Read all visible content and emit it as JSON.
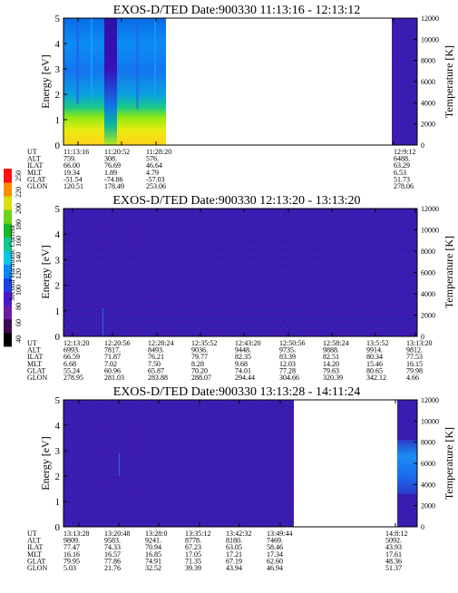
{
  "colorbar": {
    "label": "Second Harmonic Current",
    "ticks": [
      "40",
      "60",
      "80",
      "100",
      "120",
      "140",
      "160",
      "180",
      "200",
      "220",
      "250"
    ]
  },
  "chart_data": [
    {
      "type": "heatmap",
      "title": "EXOS-D/TED   Date:900330   11:13:16 - 12:13:12",
      "ylabel": "Energy [eV]",
      "y2label": "Temperature [K]",
      "ylim": [
        0,
        5
      ],
      "y2lim": [
        0,
        12000
      ],
      "yticks": [
        "0",
        "1",
        "2",
        "3",
        "4",
        "5"
      ],
      "y2ticks": [
        "0",
        "2000",
        "4000",
        "6000",
        "8000",
        "10000",
        "12000"
      ],
      "time_labels": [
        "11:13:16",
        "11:20:52",
        "11:28:20",
        "12:9:12"
      ],
      "rows": [
        {
          "label": "UT",
          "values": [
            "11:13:16",
            "11:20:52",
            "11:28:20",
            "12:9:12"
          ]
        },
        {
          "label": "ALT",
          "values": [
            "759.",
            "308.",
            "576.",
            "6488."
          ]
        },
        {
          "label": "ILAT",
          "values": [
            "66.00",
            "76.69",
            "46.64",
            "63.29"
          ]
        },
        {
          "label": "MLT",
          "values": [
            "19.34",
            "1.89",
            "4.79",
            "6.53"
          ]
        },
        {
          "label": "GLAT",
          "values": [
            "-51.54",
            "-74.86",
            "-57.03",
            "51.73"
          ]
        },
        {
          "label": "GLON",
          "values": [
            "120.51",
            "178.49",
            "253.06",
            "278.06"
          ]
        }
      ],
      "data_segments": [
        "11:13:16 - 11:28:20 (high values, energy below ~1.5 eV)",
        "12:9:12 - 12:13:12 (background)"
      ]
    },
    {
      "type": "heatmap",
      "title": "EXOS-D/TED   Date:900330   12:13:20 - 13:13:20",
      "ylabel": "Energy [eV]",
      "y2label": "Temperature [K]",
      "ylim": [
        0,
        5
      ],
      "y2lim": [
        0,
        12000
      ],
      "yticks": [
        "0",
        "1",
        "2",
        "3",
        "4",
        "5"
      ],
      "y2ticks": [
        "0",
        "2000",
        "4000",
        "6000",
        "8000",
        "10000",
        "12000"
      ],
      "time_labels": [
        "12:13:20",
        "12:20:56",
        "12:28:24",
        "12:35:52",
        "12:43:20",
        "12:50:56",
        "12:58:24",
        "13:5:52",
        "13:13:20"
      ],
      "rows": [
        {
          "label": "UT",
          "values": [
            "12:13:20",
            "12:20:56",
            "12:28:24",
            "12:35:52",
            "12:43:20",
            "12:50:56",
            "12:58:24",
            "13:5:52",
            "13:13:20"
          ]
        },
        {
          "label": "ALT",
          "values": [
            "6993.",
            "7817.",
            "8493.",
            "9036.",
            "9448.",
            "9735.",
            "9888.",
            "9914.",
            "9812."
          ]
        },
        {
          "label": "ILAT",
          "values": [
            "66.59",
            "71.87",
            "76.21",
            "79.77",
            "82.35",
            "83.39",
            "82.51",
            "80.34",
            "77.53"
          ]
        },
        {
          "label": "MLT",
          "values": [
            "6.68",
            "7.02",
            "7.50",
            "8.28",
            "9.68",
            "12.03",
            "14.20",
            "15.46",
            "16.15"
          ]
        },
        {
          "label": "GLAT",
          "values": [
            "55.24",
            "60.96",
            "65.87",
            "70.20",
            "74.01",
            "77.28",
            "79.63",
            "80.65",
            "79.98"
          ]
        },
        {
          "label": "GLON",
          "values": [
            "278.95",
            "281.03",
            "283.88",
            "288.07",
            "294.44",
            "304.66",
            "320.39",
            "342.12",
            "4.66"
          ]
        }
      ],
      "data_segments": [
        "12:13:20 - 13:13:20 (background)"
      ]
    },
    {
      "type": "heatmap",
      "title": "EXOS-D/TED   Date:900330   13:13:28 - 14:11:24",
      "ylabel": "Energy [eV]",
      "y2label": "Temperature [K]",
      "ylim": [
        0,
        5
      ],
      "y2lim": [
        0,
        12000
      ],
      "yticks": [
        "0",
        "1",
        "2",
        "3",
        "4",
        "5"
      ],
      "y2ticks": [
        "0",
        "2000",
        "4000",
        "6000",
        "8000",
        "10000",
        "12000"
      ],
      "time_labels": [
        "13:13:28",
        "13:20:48",
        "13:28:0",
        "13:35:12",
        "13:42:32",
        "13:49:44",
        "14:8:12"
      ],
      "rows": [
        {
          "label": "UT",
          "values": [
            "13:13:28",
            "13:20:48",
            "13:28:0",
            "13:35:12",
            "13:42:32",
            "13:49:44",
            "14:8:12"
          ]
        },
        {
          "label": "ALT",
          "values": [
            "9809.",
            "9583.",
            "9241.",
            "8778.",
            "8180.",
            "7469.",
            "5092."
          ]
        },
        {
          "label": "ILAT",
          "values": [
            "77.47",
            "74.33",
            "70.94",
            "67.23",
            "63.05",
            "58.46",
            "43.93"
          ]
        },
        {
          "label": "MLT",
          "values": [
            "16.16",
            "16.57",
            "16.85",
            "17.05",
            "17.21",
            "17.34",
            "17.61"
          ]
        },
        {
          "label": "GLAT",
          "values": [
            "79.95",
            "77.86",
            "74.91",
            "71.35",
            "67.19",
            "62.60",
            "48.36"
          ]
        },
        {
          "label": "GLON",
          "values": [
            "5.03",
            "21.76",
            "32.52",
            "39.39",
            "43.94",
            "46.94",
            "51.37"
          ]
        }
      ],
      "data_segments": [
        "13:13:28 - 13:52:00 (background)",
        "14:8:12 - 14:11:24 (elevated near 2-3.5 eV)"
      ]
    }
  ]
}
